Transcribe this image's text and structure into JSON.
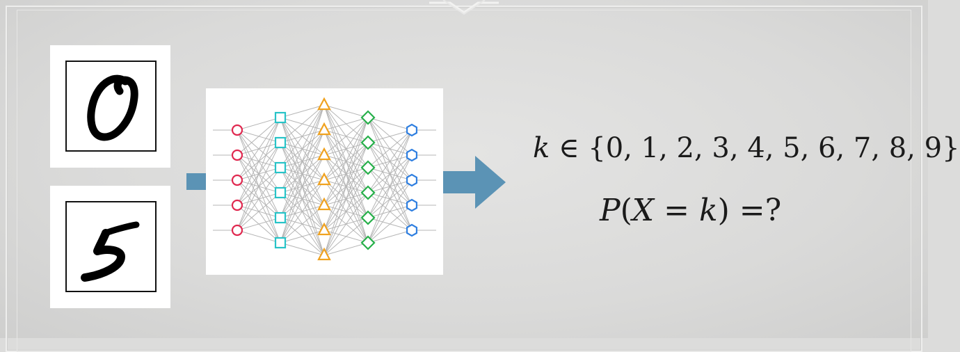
{
  "formulas": {
    "k_var": "k",
    "member_of": " ∈ ",
    "digit_set": "{0, 1, 2, 3, 4, 5, 6, 7, 8, 9}",
    "prob_P": "P",
    "prob_open": "(",
    "prob_X": "X",
    "prob_eq": " = ",
    "prob_k": "k",
    "prob_close": ")",
    "prob_tail": " =?"
  },
  "network": {
    "layers": [
      {
        "shape": "circle",
        "color": "#e0284f",
        "count": 5
      },
      {
        "shape": "square",
        "color": "#27c3c7",
        "count": 6
      },
      {
        "shape": "triangle",
        "color": "#f0a21f",
        "count": 7
      },
      {
        "shape": "diamond",
        "color": "#27b04a",
        "count": 6
      },
      {
        "shape": "hexagon",
        "color": "#2f7fe0",
        "count": 5
      }
    ]
  },
  "digits": [
    "0",
    "5"
  ],
  "colors": {
    "arrow": "#5b93b5",
    "background": "#dcdcdb",
    "card": "#ffffff"
  }
}
